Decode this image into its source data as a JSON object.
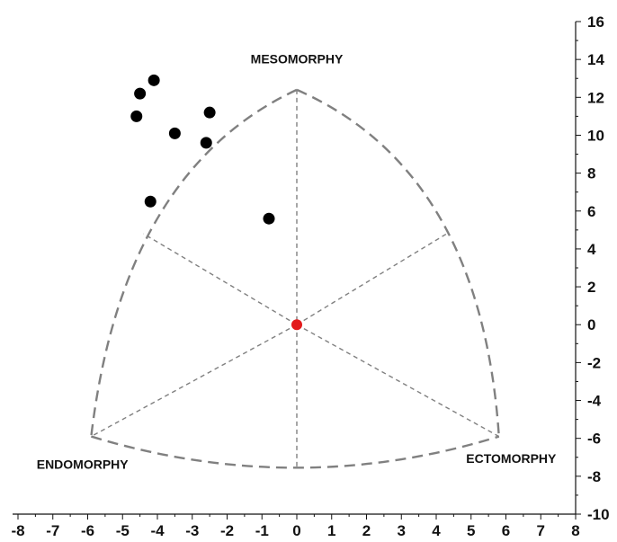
{
  "chart_data": {
    "type": "scatter",
    "title": "",
    "xlabel": "",
    "ylabel": "",
    "xlim": [
      -8,
      8
    ],
    "ylim": [
      -10,
      16
    ],
    "x_ticks": [
      "-8",
      "-7",
      "-6",
      "-5",
      "-4",
      "-3",
      "-2",
      "-1",
      "0",
      "1",
      "2",
      "3",
      "4",
      "5",
      "6",
      "7",
      "8"
    ],
    "y_ticks": [
      "16",
      "14",
      "12",
      "10",
      "8",
      "6",
      "4",
      "2",
      "0",
      "-2",
      "-4",
      "-6",
      "-8",
      "-10"
    ],
    "region_labels": {
      "top": "MESOMORPHY",
      "left": "ENDOMORPHY",
      "right": "ECTOMORPHY"
    },
    "somatochart_vertices": {
      "top": [
        0,
        12.4
      ],
      "left": [
        -5.9,
        -5.9
      ],
      "right": [
        5.8,
        -5.9
      ]
    },
    "series": [
      {
        "color": "#000000",
        "points": [
          {
            "x": -4.1,
            "y": 12.9
          },
          {
            "x": -4.5,
            "y": 12.2
          },
          {
            "x": -4.6,
            "y": 11.0
          },
          {
            "x": -2.5,
            "y": 11.2
          },
          {
            "x": -3.5,
            "y": 10.1
          },
          {
            "x": -2.6,
            "y": 9.6
          },
          {
            "x": -4.2,
            "y": 6.5
          },
          {
            "x": -0.8,
            "y": 5.6
          }
        ]
      },
      {
        "color": "#e31a1c",
        "points": [
          {
            "x": 0,
            "y": 0
          }
        ]
      }
    ],
    "grid": false
  }
}
